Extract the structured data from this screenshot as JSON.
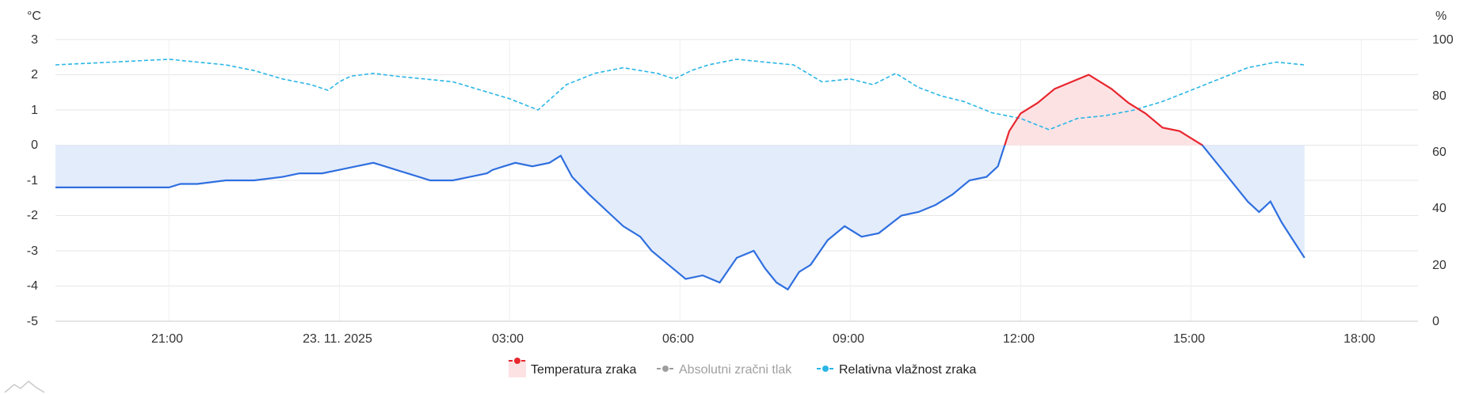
{
  "chart_data": {
    "type": "line",
    "title": "",
    "y_left_unit": "°C",
    "y_right_unit": "%",
    "ylim_left": [
      -5,
      3
    ],
    "ylim_right": [
      0,
      100
    ],
    "y_left_ticks": [
      "3",
      "2",
      "1",
      "0",
      "-1",
      "-2",
      "-3",
      "-4",
      "-5"
    ],
    "y_right_ticks": [
      "100",
      "80",
      "60",
      "40",
      "20",
      "0"
    ],
    "x_tick_labels": [
      "21:00",
      "23. 11. 2025",
      "03:00",
      "06:00",
      "09:00",
      "12:00",
      "15:00",
      "18:00"
    ],
    "x_range_hours": [
      -2,
      22
    ],
    "grid": true,
    "legend_position": "bottom-center",
    "series": [
      {
        "name": "Temperatura zraka",
        "axis": "left",
        "unit": "°C",
        "color_above_zero": "#e8262e",
        "color_below_zero": "#2f6fdf",
        "fill_above_zero": "#fde2e4",
        "fill_below_zero": "#e3ecfb",
        "x_hours": [
          -2.0,
          -1.5,
          -1.0,
          -0.5,
          0.0,
          0.2,
          0.3,
          0.4,
          0.5,
          1.0,
          1.3,
          1.5,
          2.0,
          2.3,
          2.7,
          3.0,
          3.3,
          3.6,
          3.8,
          4.0,
          4.2,
          4.4,
          4.6,
          5.0,
          5.3,
          5.6,
          5.7,
          5.9,
          6.1,
          6.4,
          6.7,
          6.9,
          7.1,
          7.4,
          7.6,
          7.8,
          8.0,
          8.3,
          8.5,
          8.8,
          9.1,
          9.4,
          9.7,
          10.0,
          10.3,
          10.5,
          10.7,
          10.9,
          11.1,
          11.3,
          11.6,
          11.9,
          12.2,
          12.5,
          12.9,
          13.2,
          13.5,
          13.8,
          14.1,
          14.4,
          14.6,
          14.8,
          15.0,
          15.3,
          15.6,
          15.9,
          16.2,
          16.4,
          16.6,
          16.9,
          17.2,
          17.5,
          17.8,
          18.0,
          18.2,
          18.5,
          18.8,
          19.0,
          19.2,
          19.4,
          19.6,
          19.8,
          20.0
        ],
        "y": [
          -1.2,
          -1.2,
          -1.2,
          -1.2,
          -1.2,
          -1.1,
          -1.1,
          -1.1,
          -1.1,
          -1.0,
          -1.0,
          -1.0,
          -0.9,
          -0.8,
          -0.8,
          -0.7,
          -0.6,
          -0.5,
          -0.6,
          -0.7,
          -0.8,
          -0.9,
          -1.0,
          -1.0,
          -0.9,
          -0.8,
          -0.7,
          -0.6,
          -0.5,
          -0.6,
          -0.5,
          -0.3,
          -0.9,
          -1.4,
          -1.7,
          -2.0,
          -2.3,
          -2.6,
          -3.0,
          -3.4,
          -3.8,
          -3.7,
          -3.9,
          -3.2,
          -3.0,
          -3.5,
          -3.9,
          -4.1,
          -3.6,
          -3.4,
          -2.7,
          -2.3,
          -2.6,
          -2.5,
          -2.0,
          -1.9,
          -1.7,
          -1.4,
          -1.0,
          -0.9,
          -0.6,
          0.4,
          0.9,
          1.2,
          1.6,
          1.8,
          2.0,
          1.8,
          1.6,
          1.2,
          0.9,
          0.5,
          0.4,
          0.2,
          0.0,
          -0.6,
          -1.2,
          -1.6,
          -1.9,
          -1.6,
          -2.2,
          -2.7,
          -3.2
        ]
      },
      {
        "name": "Absolutni zračni tlak",
        "axis": "right",
        "color": "#9e9e9e",
        "enabled": false,
        "values": []
      },
      {
        "name": "Relativna vlažnost zraka",
        "axis": "right",
        "unit": "%",
        "color": "#29b6e6",
        "dashed": true,
        "x_hours": [
          -2.0,
          -1.0,
          0.0,
          0.5,
          1.0,
          1.5,
          2.0,
          2.5,
          2.8,
          3.0,
          3.2,
          3.6,
          4.0,
          4.5,
          5.0,
          5.5,
          6.0,
          6.5,
          7.0,
          7.5,
          8.0,
          8.3,
          8.6,
          8.9,
          9.2,
          9.5,
          10.0,
          10.5,
          11.0,
          11.5,
          12.0,
          12.4,
          12.8,
          13.2,
          13.6,
          14.0,
          14.5,
          15.0,
          15.5,
          16.0,
          16.5,
          17.0,
          17.5,
          18.0,
          18.5,
          19.0,
          19.5,
          20.0
        ],
        "y": [
          91,
          92,
          93,
          92,
          91,
          89,
          86,
          84,
          82,
          85,
          87,
          88,
          87,
          86,
          85,
          82,
          79,
          75,
          84,
          88,
          90,
          89,
          88,
          86,
          89,
          91,
          93,
          92,
          91,
          85,
          86,
          84,
          88,
          83,
          80,
          78,
          74,
          72,
          68,
          72,
          73,
          75,
          78,
          82,
          86,
          90,
          92,
          91
        ]
      }
    ]
  },
  "legend": {
    "items": [
      {
        "label": "Temperatura zraka",
        "color": "#e8262e",
        "enabled": true
      },
      {
        "label": "Absolutni zračni tlak",
        "color": "#9e9e9e",
        "enabled": false
      },
      {
        "label": "Relativna vlažnost zraka",
        "color": "#29b6e6",
        "enabled": true
      }
    ]
  }
}
